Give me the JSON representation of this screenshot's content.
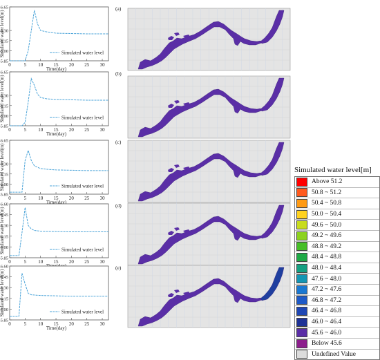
{
  "chart_data": [
    {
      "type": "line",
      "panel_label": "(a)",
      "xlabel": "Time(day)",
      "ylabel": "Simulated water level(m)",
      "xticks": [
        0,
        5,
        10,
        15,
        20,
        25,
        30
      ],
      "yticks": [
        "45.85",
        "46.00",
        "46.15",
        "46.30",
        "46.65"
      ],
      "ylim": [
        45.85,
        46.65
      ],
      "xlim": [
        0,
        32
      ],
      "series": [
        {
          "name": "Simulated water level",
          "x": [
            0,
            5,
            6,
            7,
            8,
            9,
            10,
            12,
            15,
            20,
            25,
            30,
            32
          ],
          "y": [
            45.85,
            45.85,
            46.0,
            46.3,
            46.6,
            46.4,
            46.3,
            46.28,
            46.26,
            46.255,
            46.25,
            46.25,
            46.25
          ]
        }
      ]
    },
    {
      "type": "line",
      "panel_label": "(b)",
      "xlabel": "Time(day)",
      "ylabel": "Simulated water level(m)",
      "xticks": [
        0,
        5,
        10,
        15,
        20,
        25,
        30
      ],
      "yticks": [
        "45.85",
        "46.00",
        "46.15",
        "46.30",
        "46.65"
      ],
      "ylim": [
        45.85,
        46.65
      ],
      "xlim": [
        0,
        32
      ],
      "series": [
        {
          "name": "Simulated water level",
          "x": [
            0,
            4,
            5,
            6,
            7,
            8,
            9,
            10,
            12,
            15,
            20,
            25,
            30,
            32
          ],
          "y": [
            45.85,
            45.85,
            45.9,
            46.2,
            46.55,
            46.45,
            46.32,
            46.27,
            46.25,
            46.24,
            46.235,
            46.23,
            46.23,
            46.23
          ]
        }
      ]
    },
    {
      "type": "line",
      "panel_label": "(c)",
      "xlabel": "Time(day)",
      "ylabel": "Simulated water level(m)",
      "xticks": [
        0,
        5,
        10,
        15,
        20,
        25,
        30
      ],
      "yticks": [
        "45.85",
        "46.00",
        "46.15",
        "46.30",
        "46.65"
      ],
      "ylim": [
        45.85,
        46.65
      ],
      "xlim": [
        0,
        32
      ],
      "series": [
        {
          "name": "Simulated water level",
          "x": [
            0,
            4,
            5,
            6,
            7,
            8,
            10,
            12,
            15,
            20,
            25,
            30,
            32
          ],
          "y": [
            45.88,
            45.88,
            46.35,
            46.5,
            46.35,
            46.27,
            46.23,
            46.22,
            46.21,
            46.205,
            46.2,
            46.2,
            46.2
          ]
        }
      ]
    },
    {
      "type": "line",
      "panel_label": "(d)",
      "xlabel": "Time(day)",
      "ylabel": "Simulated water level(m)",
      "xticks": [
        0,
        5,
        10,
        15,
        20,
        25,
        30
      ],
      "yticks": [
        "45.85",
        "46.00",
        "46.15",
        "46.30",
        "46.45",
        "46.60"
      ],
      "ylim": [
        45.85,
        46.6
      ],
      "xlim": [
        0,
        32
      ],
      "series": [
        {
          "name": "Simulated water level",
          "x": [
            0,
            3,
            4,
            5,
            6,
            7,
            8,
            10,
            15,
            20,
            25,
            30,
            32
          ],
          "y": [
            45.88,
            45.88,
            46.2,
            46.55,
            46.3,
            46.25,
            46.23,
            46.22,
            46.215,
            46.21,
            46.21,
            46.21,
            46.21
          ]
        }
      ]
    },
    {
      "type": "line",
      "panel_label": "(e)",
      "xlabel": "Time(day)",
      "ylabel": "Simulated water level(m)",
      "xticks": [
        0,
        5,
        10,
        15,
        20,
        25,
        30
      ],
      "yticks": [
        "45.85",
        "46.00",
        "46.15",
        "46.30",
        "46.45",
        "46.60"
      ],
      "ylim": [
        45.85,
        46.6
      ],
      "xlim": [
        0,
        32
      ],
      "series": [
        {
          "name": "Simulated water level",
          "x": [
            0,
            3,
            4,
            5,
            6,
            7,
            10,
            15,
            20,
            25,
            30,
            32
          ],
          "y": [
            45.9,
            45.9,
            46.5,
            46.35,
            46.22,
            46.2,
            46.19,
            46.185,
            46.18,
            46.18,
            46.18,
            46.18
          ]
        }
      ]
    }
  ],
  "maps": [
    {
      "panel": "(a)",
      "fill_color": "#5a2ea6",
      "right_part_color": "#5a2ea6"
    },
    {
      "panel": "(b)",
      "fill_color": "#5a2ea6",
      "right_part_color": "#5a2ea6"
    },
    {
      "panel": "(c)",
      "fill_color": "#5a2ea6",
      "right_part_color": "#5a2ea6"
    },
    {
      "panel": "(d)",
      "fill_color": "#5a2ea6",
      "right_part_color": "#5a2ea6"
    },
    {
      "panel": "(e)",
      "fill_color": "#5a2ea6",
      "right_part_color": "#1f3f9f"
    }
  ],
  "legend": {
    "title": "Simulated water level[m]",
    "items": [
      {
        "label": "Above  51.2",
        "color": "#ff0000"
      },
      {
        "label": "50.8 ~ 51.2",
        "color": "#ff5a1e"
      },
      {
        "label": "50.4 ~ 50.8",
        "color": "#ff9a14"
      },
      {
        "label": "50.0 ~ 50.4",
        "color": "#ffd21e"
      },
      {
        "label": "49.6 ~ 50.0",
        "color": "#c8dc1e"
      },
      {
        "label": "49.2 ~ 49.6",
        "color": "#8cd21e"
      },
      {
        "label": "48.8 ~ 49.2",
        "color": "#46be28"
      },
      {
        "label": "48.4 ~ 48.8",
        "color": "#1eaa46"
      },
      {
        "label": "48.0 ~ 48.4",
        "color": "#14a082"
      },
      {
        "label": "47.6 ~ 48.0",
        "color": "#1496b4"
      },
      {
        "label": "47.2 ~ 47.6",
        "color": "#1a78d2"
      },
      {
        "label": "46.8 ~ 47.2",
        "color": "#1e5ac8"
      },
      {
        "label": "46.4 ~ 46.8",
        "color": "#1e46b4"
      },
      {
        "label": "46.0 ~ 46.4",
        "color": "#1e3296"
      },
      {
        "label": "45.6 ~ 46.0",
        "color": "#5a2ea6"
      },
      {
        "label": "Below  45.6",
        "color": "#8c1e8c"
      },
      {
        "label": "Undefined Value",
        "color": "#dcdcdc"
      }
    ]
  }
}
